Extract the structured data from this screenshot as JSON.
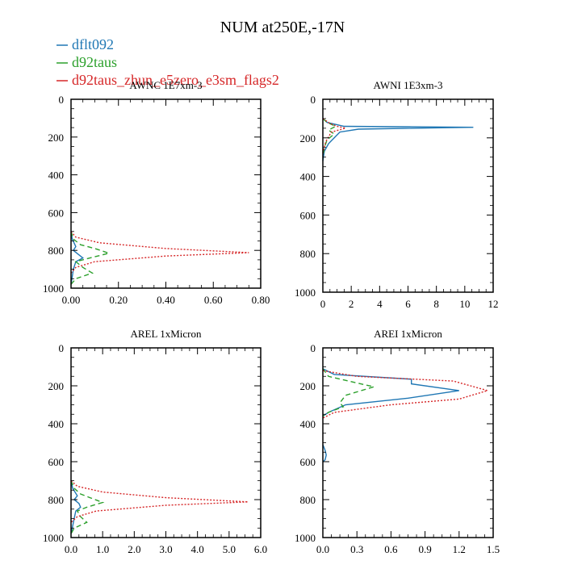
{
  "title": "NUM at250E,-17N",
  "legend": [
    {
      "label": "dflt092",
      "color": "#1f77b4",
      "dash": "solid"
    },
    {
      "label": "d92taus",
      "color": "#2ca02c",
      "dash": "dashed"
    },
    {
      "label": "d92taus_zhun_e5zero_e3sm_flags2",
      "color": "#d62728",
      "dash": "dotted"
    }
  ],
  "chart_data": [
    {
      "type": "line",
      "title": "AWNC  1E7xm-3",
      "xlim": [
        0,
        0.8
      ],
      "ylim": [
        1000,
        0
      ],
      "xticks": [
        0,
        0.2,
        0.4,
        0.6,
        0.8
      ],
      "xticklabels": [
        "0.00",
        "0.20",
        "0.40",
        "0.60",
        "0.80"
      ],
      "yticks": [
        0,
        200,
        400,
        600,
        800,
        1000
      ],
      "yticklabels": [
        "0",
        "200",
        "400",
        "600",
        "800",
        "1000"
      ],
      "series": [
        {
          "name": "dflt092",
          "x": [
            0,
            0.005,
            0.02,
            0.01,
            0.03,
            0.05,
            0.02,
            0.01,
            0.005,
            0.0
          ],
          "y": [
            700,
            740,
            780,
            800,
            820,
            840,
            860,
            900,
            940,
            980
          ]
        },
        {
          "name": "d92taus",
          "x": [
            0,
            0.01,
            0.04,
            0.1,
            0.16,
            0.08,
            0.02,
            0.05,
            0.09,
            0.02,
            0.0
          ],
          "y": [
            700,
            740,
            770,
            790,
            815,
            840,
            860,
            890,
            920,
            950,
            980
          ]
        },
        {
          "name": "d92taus_zhun_e5zero_e3sm_flags2",
          "x": [
            0,
            0.02,
            0.12,
            0.4,
            0.75,
            0.4,
            0.1,
            0.02,
            0.0
          ],
          "y": [
            700,
            730,
            760,
            790,
            812,
            830,
            860,
            890,
            920
          ]
        }
      ]
    },
    {
      "type": "line",
      "title": "AWNI  1E3xm-3",
      "xlim": [
        0,
        12
      ],
      "ylim": [
        1000,
        0
      ],
      "xticks": [
        0,
        2,
        4,
        6,
        8,
        10,
        12
      ],
      "xticklabels": [
        "0",
        "2",
        "4",
        "6",
        "8",
        "10",
        "12"
      ],
      "yticks": [
        0,
        200,
        400,
        600,
        800,
        1000
      ],
      "yticklabels": [
        "0",
        "200",
        "400",
        "600",
        "800",
        "1000"
      ],
      "series": [
        {
          "name": "dflt092",
          "x": [
            0,
            0.3,
            1.5,
            10.6,
            2.5,
            1.2,
            0.8,
            0.4,
            0.1,
            0.0
          ],
          "y": [
            100,
            120,
            140,
            145,
            155,
            170,
            200,
            230,
            270,
            320
          ]
        },
        {
          "name": "d92taus",
          "x": [
            0,
            0.3,
            0.9,
            0.4,
            0.8,
            0.3,
            0.1,
            0.0
          ],
          "y": [
            100,
            120,
            140,
            160,
            180,
            210,
            250,
            300
          ]
        },
        {
          "name": "d92taus_zhun_e5zero_e3sm_flags2",
          "x": [
            0,
            0.5,
            1.0,
            1.6,
            0.6,
            0.2,
            0.0
          ],
          "y": [
            100,
            125,
            140,
            150,
            170,
            220,
            280
          ]
        }
      ]
    },
    {
      "type": "line",
      "title": "AREL  1xMicron",
      "xlim": [
        0,
        6
      ],
      "ylim": [
        1000,
        0
      ],
      "xticks": [
        0,
        1,
        2,
        3,
        4,
        5,
        6
      ],
      "xticklabels": [
        "0.0",
        "1.0",
        "2.0",
        "3.0",
        "4.0",
        "5.0",
        "6.0"
      ],
      "yticks": [
        0,
        200,
        400,
        600,
        800,
        1000
      ],
      "yticklabels": [
        "0",
        "200",
        "400",
        "600",
        "800",
        "1000"
      ],
      "series": [
        {
          "name": "dflt092",
          "x": [
            0,
            0.05,
            0.2,
            0.1,
            0.25,
            0.3,
            0.15,
            0.1,
            0.05,
            0.0
          ],
          "y": [
            700,
            740,
            780,
            800,
            820,
            840,
            860,
            900,
            940,
            980
          ]
        },
        {
          "name": "d92taus",
          "x": [
            0,
            0.1,
            0.3,
            0.6,
            1.0,
            0.5,
            0.2,
            0.3,
            0.5,
            0.1,
            0.0
          ],
          "y": [
            700,
            740,
            770,
            790,
            815,
            840,
            860,
            890,
            920,
            950,
            980
          ]
        },
        {
          "name": "d92taus_zhun_e5zero_e3sm_flags2",
          "x": [
            0,
            0.2,
            1.0,
            3.0,
            5.6,
            3.0,
            0.8,
            0.2,
            0.0
          ],
          "y": [
            700,
            730,
            760,
            790,
            812,
            830,
            860,
            890,
            920
          ]
        }
      ]
    },
    {
      "type": "line",
      "title": "AREI  1xMicron",
      "xlim": [
        0,
        1.5
      ],
      "ylim": [
        1000,
        0
      ],
      "xticks": [
        0,
        0.3,
        0.6,
        0.9,
        1.2,
        1.5
      ],
      "xticklabels": [
        "0.0",
        "0.3",
        "0.6",
        "0.9",
        "1.2",
        "1.5"
      ],
      "yticks": [
        0,
        200,
        400,
        600,
        800,
        1000
      ],
      "yticklabels": [
        "0",
        "200",
        "400",
        "600",
        "800",
        "1000"
      ],
      "series": [
        {
          "name": "dflt092",
          "x": [
            0,
            0.1,
            0.78,
            0.78,
            1.2,
            0.75,
            0.2,
            0.05,
            0.0
          ],
          "y": [
            110,
            140,
            165,
            190,
            225,
            265,
            300,
            340,
            360
          ]
        },
        {
          "name": "dflt092_lower",
          "legend": false,
          "x": [
            0.0,
            0.02,
            0.03,
            0.02,
            0.0
          ],
          "y": [
            510,
            540,
            565,
            590,
            600
          ]
        },
        {
          "name": "d92taus",
          "x": [
            0,
            0.05,
            0.3,
            0.45,
            0.2,
            0.15,
            0.18,
            0.05,
            0.0
          ],
          "y": [
            110,
            150,
            185,
            205,
            250,
            290,
            310,
            340,
            360
          ]
        },
        {
          "name": "d92taus_zhun_e5zero_e3sm_flags2",
          "x": [
            0,
            0.3,
            1.15,
            1.45,
            1.2,
            0.6,
            0.1,
            0.0
          ],
          "y": [
            120,
            150,
            175,
            225,
            270,
            300,
            340,
            370
          ]
        }
      ]
    }
  ]
}
